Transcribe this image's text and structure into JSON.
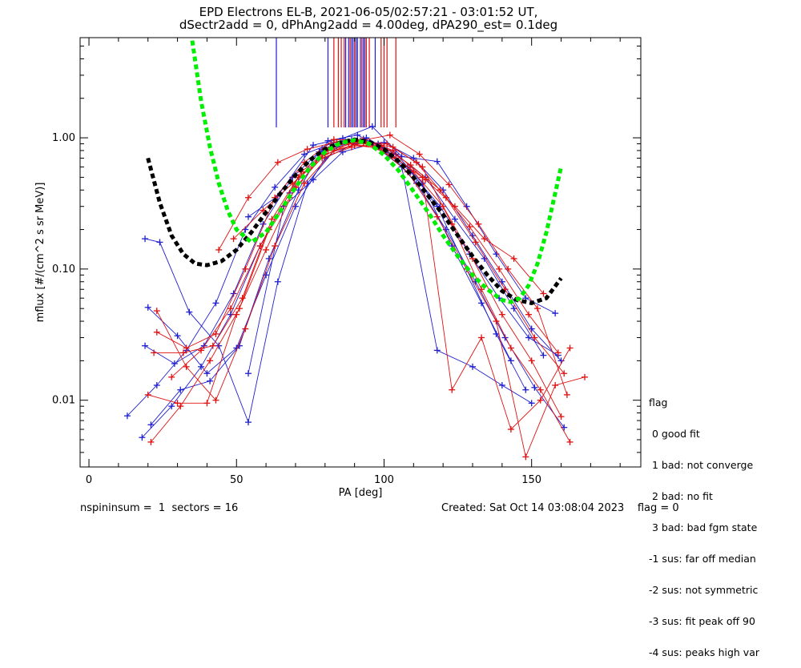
{
  "title_line1": "EPD Electrons EL-B, 2021-06-05/02:57:21 - 03:01:52 UT,",
  "title_line2": "dSectr2add = 0, dPhAng2add = 4.00deg, dPA290_est=    0.1deg",
  "footer_left": "nspininsum =  1  sectors = 16",
  "footer_right": "Created: Sat Oct 14 03:08:04 2023    flag = 0",
  "legend": {
    "heading": "flag",
    "items": [
      " 0 good fit",
      " 1 bad: not converge",
      " 2 bad: no fit",
      " 3 bad: bad fgm state",
      "-1 sus: far off median",
      "-2 sus: not symmetric",
      "-3 sus: fit peak off 90",
      "-4 sus: peaks high var"
    ]
  },
  "colors": {
    "blue": "#1f1fd0",
    "red": "#e01010",
    "green": "#00ee00",
    "black": "#000000"
  },
  "chart_data": {
    "type": "scatter",
    "xlabel": "PA [deg]",
    "ylabel": "mflux [#/(cm^2 s sr MeV)]",
    "xlim": [
      -3,
      187
    ],
    "ylim": [
      0.0031,
      5.8
    ],
    "yscale": "log",
    "xticks": [
      0,
      50,
      100,
      150
    ],
    "xtick_labels": [
      "0",
      "50",
      "100",
      "150"
    ],
    "yticks": [
      0.01,
      0.1,
      1.0
    ],
    "ytick_labels": [
      "0.01",
      "0.10",
      "1.00"
    ],
    "grid": false,
    "peak_lines": {
      "blue": [
        63.5,
        81,
        87,
        88,
        89,
        89.5,
        90.5,
        91,
        92,
        93,
        93.5,
        97
      ],
      "red": [
        83,
        84.5,
        85.5,
        86.5,
        88.5,
        90,
        92.5,
        94,
        95,
        99,
        100,
        101,
        104
      ]
    },
    "fits": [
      {
        "color": "black",
        "style": "dashed",
        "x": [
          20,
          24,
          28,
          32,
          36,
          40,
          45,
          50,
          55,
          60,
          65,
          70,
          75,
          80,
          85,
          90,
          95,
          100,
          105,
          110,
          115,
          120,
          125,
          130,
          135,
          140,
          145,
          150,
          155,
          160
        ],
        "y": [
          0.7,
          0.32,
          0.18,
          0.13,
          0.11,
          0.107,
          0.115,
          0.14,
          0.19,
          0.27,
          0.38,
          0.52,
          0.68,
          0.82,
          0.92,
          0.97,
          0.93,
          0.82,
          0.66,
          0.5,
          0.36,
          0.26,
          0.18,
          0.125,
          0.09,
          0.068,
          0.058,
          0.055,
          0.06,
          0.085
        ]
      },
      {
        "color": "green",
        "style": "dashed",
        "x": [
          35,
          38,
          41,
          44,
          47,
          50,
          55,
          60,
          65,
          70,
          75,
          80,
          85,
          90,
          95,
          100,
          105,
          110,
          115,
          120,
          125,
          130,
          135,
          140,
          143,
          146,
          149,
          152,
          155,
          158,
          160
        ],
        "y": [
          5.5,
          1.9,
          0.85,
          0.45,
          0.28,
          0.2,
          0.16,
          0.19,
          0.28,
          0.42,
          0.6,
          0.78,
          0.91,
          0.96,
          0.9,
          0.74,
          0.56,
          0.39,
          0.27,
          0.18,
          0.125,
          0.09,
          0.07,
          0.058,
          0.056,
          0.06,
          0.075,
          0.11,
          0.19,
          0.38,
          0.6
        ]
      }
    ],
    "series": [
      {
        "color": "blue",
        "x": [
          13,
          23,
          33,
          43,
          53,
          63,
          73,
          83,
          93,
          103,
          113,
          123,
          133,
          143
        ],
        "y": [
          0.0076,
          0.013,
          0.024,
          0.055,
          0.2,
          0.42,
          0.75,
          0.92,
          0.98,
          0.8,
          0.45,
          0.15,
          0.055,
          0.02
        ]
      },
      {
        "color": "blue",
        "x": [
          18,
          28,
          38,
          48,
          58,
          68,
          78,
          88,
          98,
          108,
          118,
          128,
          138,
          148
        ],
        "y": [
          0.0052,
          0.009,
          0.018,
          0.045,
          0.15,
          0.38,
          0.78,
          0.93,
          0.9,
          0.6,
          0.3,
          0.1,
          0.032,
          0.012
        ]
      },
      {
        "color": "blue",
        "x": [
          19,
          29,
          39,
          49,
          59,
          69,
          79,
          89,
          99,
          109,
          119,
          129,
          139,
          149,
          159
        ],
        "y": [
          0.026,
          0.019,
          0.026,
          0.065,
          0.22,
          0.5,
          0.82,
          0.97,
          0.85,
          0.55,
          0.3,
          0.13,
          0.06,
          0.03,
          0.022
        ]
      },
      {
        "color": "blue",
        "x": [
          20,
          30,
          40,
          50,
          60,
          70,
          80,
          90,
          100,
          110,
          120,
          130,
          140,
          150,
          160
        ],
        "y": [
          0.051,
          0.031,
          0.016,
          0.025,
          0.09,
          0.3,
          0.7,
          0.9,
          0.92,
          0.7,
          0.4,
          0.18,
          0.08,
          0.035,
          0.02
        ]
      },
      {
        "color": "blue",
        "x": [
          19,
          24,
          34,
          44,
          54,
          64,
          74,
          84,
          94,
          104,
          114,
          124,
          134,
          144,
          154
        ],
        "y": [
          0.17,
          0.16,
          0.047,
          0.026,
          0.0068,
          0.08,
          0.45,
          0.85,
          1.0,
          0.75,
          0.5,
          0.24,
          0.12,
          0.05,
          0.022
        ]
      },
      {
        "color": "blue",
        "x": [
          21,
          31,
          41,
          51,
          61,
          71,
          81,
          91,
          101,
          111,
          121,
          131,
          141,
          151,
          161
        ],
        "y": [
          0.0065,
          0.012,
          0.014,
          0.026,
          0.12,
          0.4,
          0.95,
          1.05,
          0.8,
          0.45,
          0.2,
          0.08,
          0.03,
          0.0125,
          0.0062
        ]
      },
      {
        "color": "blue",
        "x": [
          54,
          64,
          76,
          86,
          96,
          106,
          118,
          128,
          138,
          148,
          158
        ],
        "y": [
          0.25,
          0.36,
          0.88,
          0.99,
          1.22,
          0.72,
          0.66,
          0.3,
          0.13,
          0.06,
          0.046
        ]
      },
      {
        "color": "blue",
        "x": [
          54,
          66,
          76,
          86,
          96,
          106,
          118,
          130,
          140,
          150
        ],
        "y": [
          0.016,
          0.3,
          0.48,
          0.78,
          0.9,
          0.6,
          0.024,
          0.018,
          0.013,
          0.0095
        ]
      },
      {
        "color": "red",
        "x": [
          21,
          31,
          41,
          51,
          61,
          71,
          81,
          91,
          101,
          111,
          121,
          131,
          141,
          151,
          161
        ],
        "y": [
          0.0048,
          0.009,
          0.02,
          0.05,
          0.2,
          0.5,
          0.8,
          0.93,
          0.9,
          0.65,
          0.35,
          0.16,
          0.07,
          0.03,
          0.016
        ]
      },
      {
        "color": "red",
        "x": [
          22,
          32,
          42,
          52,
          62,
          72,
          82,
          92,
          102,
          112,
          122,
          132,
          142,
          152,
          162
        ],
        "y": [
          0.023,
          0.023,
          0.026,
          0.06,
          0.24,
          0.55,
          0.85,
          0.95,
          1.05,
          0.75,
          0.44,
          0.22,
          0.1,
          0.05,
          0.011
        ]
      },
      {
        "color": "red",
        "x": [
          23,
          33,
          43,
          53,
          63,
          73,
          83,
          93,
          103,
          113,
          123,
          133,
          143,
          153,
          163
        ],
        "y": [
          0.048,
          0.018,
          0.01,
          0.035,
          0.15,
          0.45,
          0.8,
          0.92,
          0.85,
          0.6,
          0.22,
          0.07,
          0.025,
          0.012,
          0.0048
        ]
      },
      {
        "color": "red",
        "x": [
          23,
          33,
          43,
          53,
          63,
          73,
          83,
          93,
          103,
          113,
          123,
          133,
          143,
          153,
          163
        ],
        "y": [
          0.033,
          0.025,
          0.032,
          0.1,
          0.35,
          0.65,
          0.97,
          0.96,
          0.8,
          0.5,
          0.012,
          0.03,
          0.006,
          0.01,
          0.025
        ]
      },
      {
        "color": "red",
        "x": [
          20,
          30,
          40,
          50,
          60,
          70,
          80,
          90,
          100,
          110,
          120,
          130,
          140,
          150,
          160
        ],
        "y": [
          0.011,
          0.0095,
          0.0095,
          0.045,
          0.14,
          0.42,
          0.75,
          0.88,
          0.82,
          0.55,
          0.3,
          0.12,
          0.045,
          0.02,
          0.0075
        ]
      },
      {
        "color": "red",
        "x": [
          28,
          38,
          48,
          58,
          68,
          78,
          88,
          98,
          108,
          118,
          128,
          138,
          148,
          158,
          168
        ],
        "y": [
          0.015,
          0.024,
          0.05,
          0.15,
          0.35,
          0.7,
          0.9,
          0.85,
          0.55,
          0.25,
          0.1,
          0.04,
          0.0037,
          0.013,
          0.015
        ]
      },
      {
        "color": "red",
        "x": [
          44,
          54,
          64,
          74,
          84,
          94,
          104,
          114,
          124,
          134,
          144,
          154
        ],
        "y": [
          0.14,
          0.35,
          0.65,
          0.82,
          0.93,
          0.9,
          0.7,
          0.48,
          0.3,
          0.17,
          0.12,
          0.065
        ]
      },
      {
        "color": "red",
        "x": [
          49,
          59,
          69,
          79,
          89,
          99,
          109,
          119,
          129,
          139,
          149,
          159
        ],
        "y": [
          0.17,
          0.28,
          0.45,
          0.7,
          0.85,
          0.88,
          0.62,
          0.4,
          0.21,
          0.1,
          0.045,
          0.023
        ]
      }
    ]
  }
}
